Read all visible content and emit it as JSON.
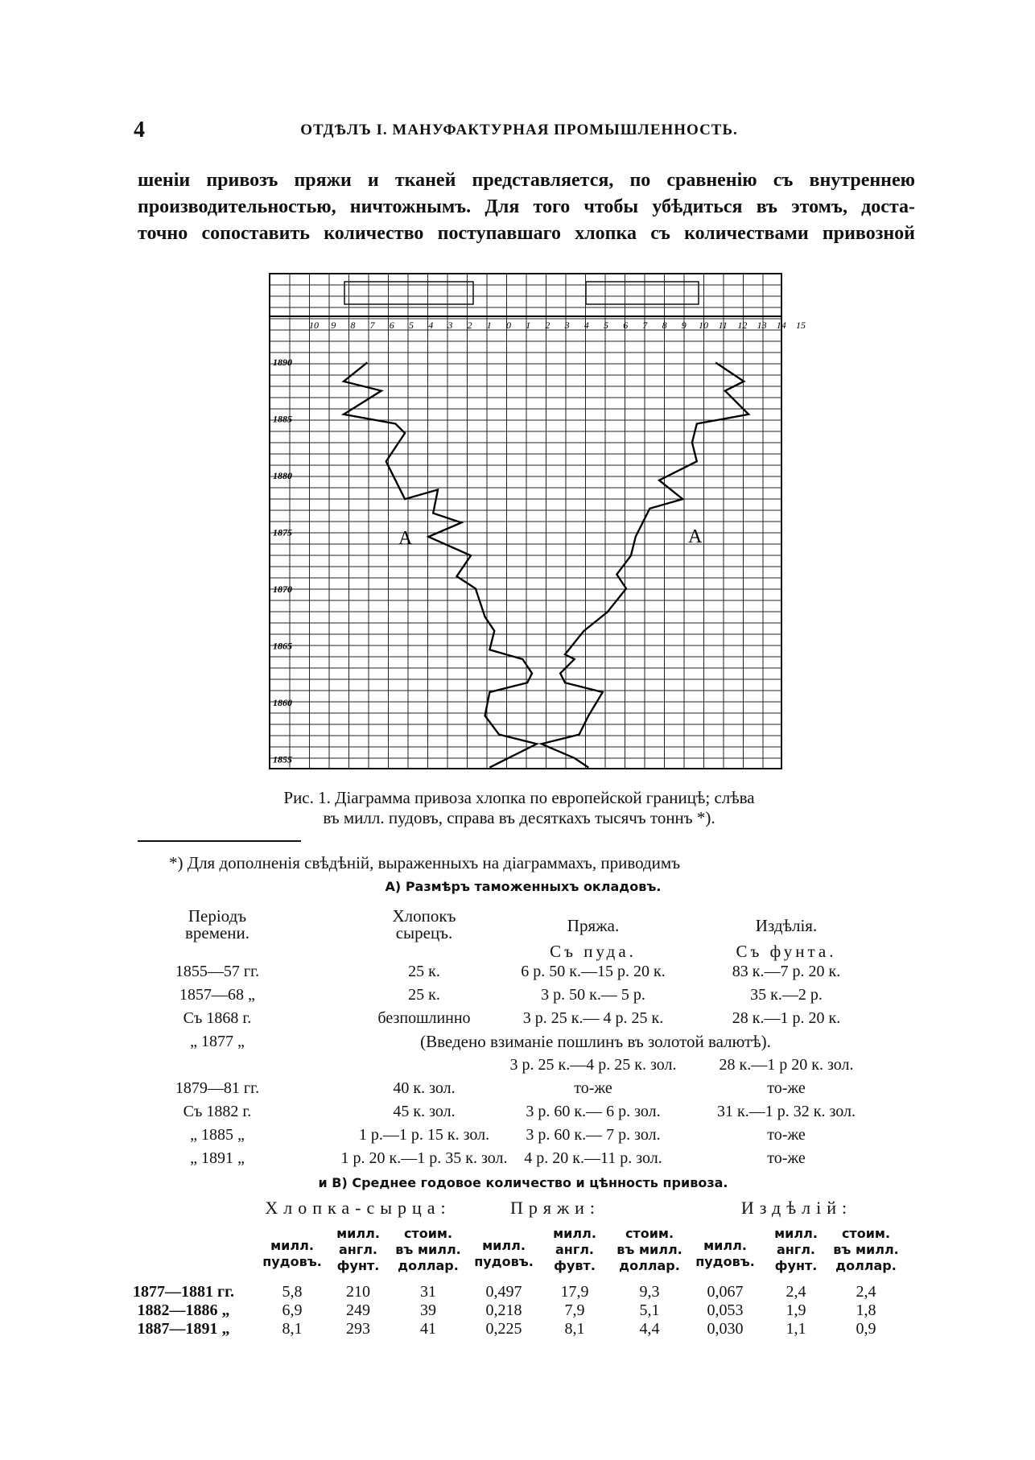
{
  "header": {
    "page_number": "4",
    "title": "ОТДѢЛЪ I.   МАНУФАКТУРНАЯ ПРОМЫШЛЕННОСТЬ."
  },
  "paragraph": {
    "lines": [
      "шеніи привозъ пряжи и тканей представляется, по сравненію съ внутреннею",
      "производительностью, ничтожнымъ. Для того чтобы убѣдиться въ этомъ, доста-",
      "точно сопоставить количество поступавшаго хлопка съ количествами привозной"
    ]
  },
  "figure": {
    "scale_labels": [
      "10",
      "9",
      "8",
      "7",
      "6",
      "5",
      "4",
      "3",
      "2",
      "1",
      "0",
      "1",
      "2",
      "3",
      "4",
      "5",
      "6",
      "7",
      "8",
      "9",
      "10",
      "11",
      "12",
      "13",
      "14",
      "15"
    ],
    "year_labels": [
      "1890",
      "1885",
      "1880",
      "1875",
      "1870",
      "1865",
      "1860",
      "1855"
    ],
    "curve_labels": [
      "А",
      "А"
    ],
    "caption": [
      "Рис. 1. Діаграмма привоза хлопка по европейской границѣ; слѣва",
      "въ милл. пудовъ, справа въ десяткахъ тысячъ тоннъ *)."
    ]
  },
  "footnote": {
    "intro": "*) Для дополненія свѣдѣній, выраженныхъ на діаграммахъ, приводимъ",
    "section_a": {
      "title": "А) Размѣръ таможенныхъ окладовъ.",
      "headers": {
        "period": "Періодъ времени.",
        "cotton": "Хлопокъ сырецъ.",
        "yarn": "Пряжа.",
        "goods": "Издѣлія."
      },
      "units": {
        "yarn": "Съ пуда.",
        "goods": "Съ фунта."
      },
      "rows": [
        {
          "period": "1855—57 гг.",
          "cotton": "25 к.",
          "yarn": "6 р. 50 к.—15 р. 20 к.",
          "goods": "83 к.—7 р. 20 к."
        },
        {
          "period": "1857—68 „",
          "cotton": "25 к.",
          "yarn": "3 р. 50 к.— 5 р.",
          "goods": "35 к.—2 р."
        },
        {
          "period": "Съ 1868 г.",
          "cotton": "безпошлинно",
          "yarn": "3 р. 25 к.— 4 р. 25 к.",
          "goods": "28 к.—1 р. 20 к."
        },
        {
          "period": "„ 1877 „",
          "note": "(Введено взиманіе пошлинъ въ золотой валютѣ)."
        },
        {
          "yarn": "3 р. 25 к.—4 р. 25 к. зол.",
          "goods": "28 к.—1 р 20 к. зол."
        },
        {
          "period": "1879—81 гг.",
          "cotton": "40 к. зол.",
          "yarn": "то-же",
          "goods": "то-же"
        },
        {
          "period": "Съ 1882 г.",
          "cotton": "45 к. зол.",
          "yarn": "3 р. 60 к.— 6 р. зол.",
          "goods": "31 к.—1 р. 32 к. зол."
        },
        {
          "period": "„ 1885 „",
          "cotton": "1 р.—1 р. 15 к. зол.",
          "yarn": "3 р. 60 к.— 7 р. зол.",
          "goods": "то-же"
        },
        {
          "period": "„ 1891 „",
          "cotton": "1 р. 20 к.—1 р. 35 к. зол.",
          "yarn": "4 р. 20 к.—11 р. зол.",
          "goods": "то-же"
        }
      ]
    },
    "section_b": {
      "title": "и В) Среднее годовое количество и цѣнность привоза.",
      "groups": [
        "Хлопка-сырца:",
        "Пряжи:",
        "Издѣлій:"
      ],
      "subheaders": [
        [
          "милл.",
          "пудовъ."
        ],
        [
          "милл.",
          "англ.",
          "фунт."
        ],
        [
          "стоим.",
          "въ милл.",
          "доллар."
        ],
        [
          "милл.",
          "пудовъ."
        ],
        [
          "милл.",
          "англ.",
          "фувт."
        ],
        [
          "стоим.",
          "въ милл.",
          "доллар."
        ],
        [
          "милл.",
          "пудовъ."
        ],
        [
          "милл.",
          "англ.",
          "фунт."
        ],
        [
          "стоим.",
          "въ милл.",
          "доллар."
        ]
      ],
      "rows": [
        [
          "1877—1881 гг.",
          "5,8",
          "210",
          "31",
          "0,497",
          "17,9",
          "9,3",
          "0,067",
          "2,4",
          "2,4"
        ],
        [
          "1882—1886 „",
          "6,9",
          "249",
          "39",
          "0,218",
          "7,9",
          "5,1",
          "0,053",
          "1,9",
          "1,8"
        ],
        [
          "1887—1891 „",
          "8,1",
          "293",
          "41",
          "0,225",
          "8,1",
          "4,4",
          "0,030",
          "1,1",
          "0,9"
        ]
      ]
    }
  }
}
